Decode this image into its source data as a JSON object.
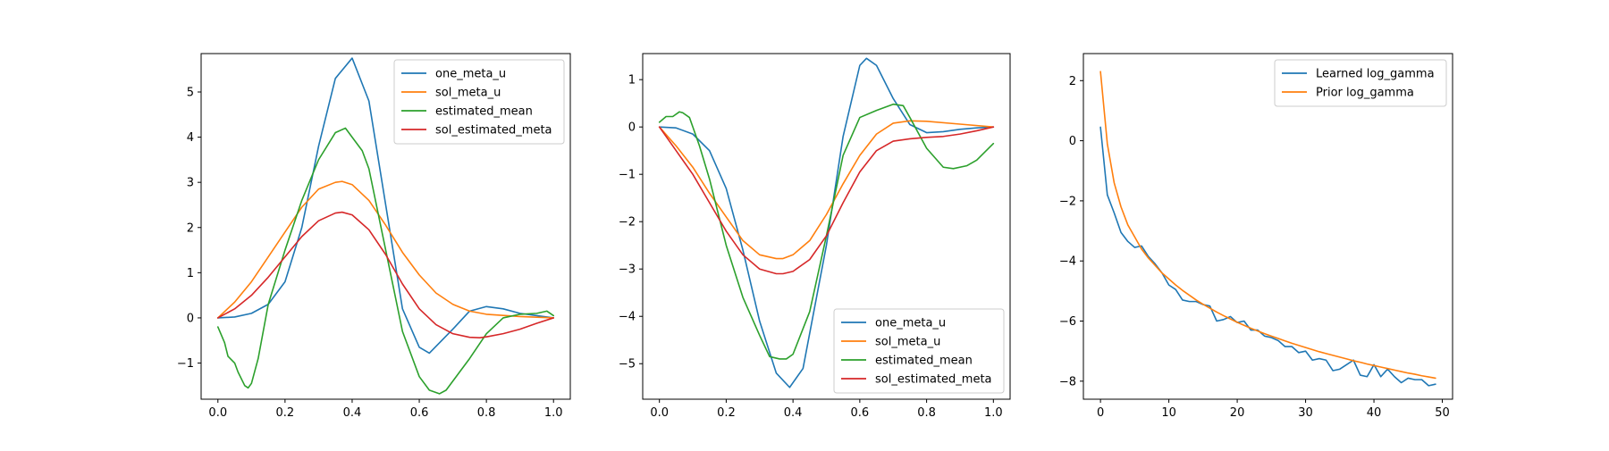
{
  "chart_data": [
    {
      "type": "line",
      "title": "",
      "xlabel": "",
      "ylabel": "",
      "xlim": [
        -0.05,
        1.05
      ],
      "ylim": [
        -1.8,
        5.85
      ],
      "xticks": [
        0.0,
        0.2,
        0.4,
        0.6,
        0.8,
        1.0
      ],
      "xtick_labels": [
        "0.0",
        "0.2",
        "0.4",
        "0.6",
        "0.8",
        "1.0"
      ],
      "yticks": [
        -1,
        0,
        1,
        2,
        3,
        4,
        5
      ],
      "ytick_labels": [
        "−1",
        "0",
        "1",
        "2",
        "3",
        "4",
        "5"
      ],
      "grid": false,
      "legend": "upper right",
      "series": [
        {
          "name": "one_meta_u",
          "color": "#1f77b4",
          "x": [
            0.0,
            0.05,
            0.1,
            0.15,
            0.2,
            0.25,
            0.3,
            0.35,
            0.4,
            0.45,
            0.5,
            0.55,
            0.6,
            0.63,
            0.7,
            0.75,
            0.8,
            0.85,
            0.9,
            0.95,
            1.0
          ],
          "y": [
            0.0,
            0.02,
            0.1,
            0.3,
            0.8,
            2.0,
            3.8,
            5.3,
            5.75,
            4.8,
            2.5,
            0.2,
            -0.65,
            -0.78,
            -0.25,
            0.15,
            0.25,
            0.2,
            0.1,
            0.05,
            0.0
          ]
        },
        {
          "name": "sol_meta_u",
          "color": "#ff7f0e",
          "x": [
            0.0,
            0.05,
            0.1,
            0.15,
            0.2,
            0.25,
            0.3,
            0.35,
            0.37,
            0.4,
            0.45,
            0.5,
            0.55,
            0.6,
            0.65,
            0.7,
            0.75,
            0.8,
            0.9,
            1.0
          ],
          "y": [
            0.0,
            0.35,
            0.8,
            1.35,
            1.9,
            2.45,
            2.85,
            3.0,
            3.02,
            2.95,
            2.6,
            2.05,
            1.45,
            0.95,
            0.55,
            0.3,
            0.15,
            0.08,
            0.03,
            0.0
          ]
        },
        {
          "name": "estimated_mean",
          "color": "#2ca02c",
          "x": [
            0.0,
            0.02,
            0.03,
            0.05,
            0.06,
            0.08,
            0.09,
            0.1,
            0.12,
            0.15,
            0.2,
            0.25,
            0.3,
            0.35,
            0.38,
            0.4,
            0.43,
            0.45,
            0.5,
            0.55,
            0.6,
            0.63,
            0.66,
            0.68,
            0.72,
            0.75,
            0.8,
            0.85,
            0.9,
            0.95,
            0.98,
            1.0
          ],
          "y": [
            -0.2,
            -0.55,
            -0.85,
            -1.0,
            -1.2,
            -1.5,
            -1.55,
            -1.45,
            -0.9,
            0.3,
            1.5,
            2.6,
            3.5,
            4.1,
            4.2,
            4.0,
            3.7,
            3.3,
            1.5,
            -0.3,
            -1.3,
            -1.6,
            -1.68,
            -1.6,
            -1.2,
            -0.9,
            -0.35,
            0.0,
            0.08,
            0.1,
            0.15,
            0.05
          ]
        },
        {
          "name": "sol_estimated_meta",
          "color": "#d62728",
          "x": [
            0.0,
            0.05,
            0.1,
            0.15,
            0.2,
            0.25,
            0.3,
            0.35,
            0.37,
            0.4,
            0.45,
            0.5,
            0.55,
            0.6,
            0.65,
            0.7,
            0.75,
            0.78,
            0.8,
            0.85,
            0.9,
            0.95,
            1.0
          ],
          "y": [
            0.0,
            0.2,
            0.5,
            0.9,
            1.35,
            1.8,
            2.15,
            2.32,
            2.34,
            2.28,
            1.95,
            1.4,
            0.75,
            0.2,
            -0.15,
            -0.35,
            -0.43,
            -0.44,
            -0.42,
            -0.35,
            -0.25,
            -0.12,
            0.0
          ]
        }
      ]
    },
    {
      "type": "line",
      "title": "",
      "xlabel": "",
      "ylabel": "",
      "xlim": [
        -0.05,
        1.05
      ],
      "ylim": [
        -5.75,
        1.55
      ],
      "xticks": [
        0.0,
        0.2,
        0.4,
        0.6,
        0.8,
        1.0
      ],
      "xtick_labels": [
        "0.0",
        "0.2",
        "0.4",
        "0.6",
        "0.8",
        "1.0"
      ],
      "yticks": [
        -5,
        -4,
        -3,
        -2,
        -1,
        0,
        1
      ],
      "ytick_labels": [
        "−5",
        "−4",
        "−3",
        "−2",
        "−1",
        "0",
        "1"
      ],
      "grid": false,
      "legend": "lower right",
      "series": [
        {
          "name": "one_meta_u",
          "color": "#1f77b4",
          "x": [
            0.0,
            0.05,
            0.1,
            0.15,
            0.2,
            0.25,
            0.3,
            0.35,
            0.39,
            0.43,
            0.5,
            0.55,
            0.6,
            0.62,
            0.65,
            0.7,
            0.75,
            0.8,
            0.85,
            0.9,
            0.95,
            1.0
          ],
          "y": [
            0.0,
            -0.02,
            -0.15,
            -0.5,
            -1.3,
            -2.6,
            -4.1,
            -5.2,
            -5.5,
            -5.1,
            -2.5,
            -0.2,
            1.3,
            1.45,
            1.3,
            0.6,
            0.05,
            -0.12,
            -0.1,
            -0.05,
            -0.02,
            0.0
          ]
        },
        {
          "name": "sol_meta_u",
          "color": "#ff7f0e",
          "x": [
            0.0,
            0.05,
            0.1,
            0.15,
            0.2,
            0.25,
            0.3,
            0.35,
            0.37,
            0.4,
            0.45,
            0.5,
            0.55,
            0.6,
            0.65,
            0.7,
            0.75,
            0.8,
            0.9,
            1.0
          ],
          "y": [
            0.0,
            -0.4,
            -0.85,
            -1.4,
            -1.9,
            -2.4,
            -2.7,
            -2.78,
            -2.78,
            -2.7,
            -2.4,
            -1.85,
            -1.2,
            -0.6,
            -0.15,
            0.08,
            0.13,
            0.12,
            0.06,
            0.0
          ]
        },
        {
          "name": "estimated_mean",
          "color": "#2ca02c",
          "x": [
            0.0,
            0.02,
            0.04,
            0.06,
            0.07,
            0.09,
            0.1,
            0.12,
            0.15,
            0.2,
            0.25,
            0.3,
            0.33,
            0.36,
            0.38,
            0.4,
            0.45,
            0.5,
            0.55,
            0.6,
            0.65,
            0.7,
            0.73,
            0.75,
            0.8,
            0.85,
            0.88,
            0.92,
            0.95,
            1.0
          ],
          "y": [
            0.1,
            0.22,
            0.22,
            0.32,
            0.3,
            0.2,
            0.0,
            -0.4,
            -1.1,
            -2.5,
            -3.6,
            -4.4,
            -4.85,
            -4.9,
            -4.9,
            -4.8,
            -3.9,
            -2.3,
            -0.6,
            0.2,
            0.35,
            0.48,
            0.45,
            0.2,
            -0.45,
            -0.85,
            -0.88,
            -0.82,
            -0.7,
            -0.35
          ]
        },
        {
          "name": "sol_estimated_meta",
          "color": "#d62728",
          "x": [
            0.0,
            0.05,
            0.1,
            0.15,
            0.2,
            0.25,
            0.3,
            0.35,
            0.37,
            0.4,
            0.45,
            0.5,
            0.55,
            0.6,
            0.65,
            0.7,
            0.75,
            0.8,
            0.85,
            0.9,
            0.95,
            1.0
          ],
          "y": [
            0.0,
            -0.5,
            -1.0,
            -1.6,
            -2.2,
            -2.7,
            -3.0,
            -3.1,
            -3.1,
            -3.05,
            -2.8,
            -2.3,
            -1.6,
            -0.95,
            -0.5,
            -0.3,
            -0.25,
            -0.22,
            -0.2,
            -0.15,
            -0.08,
            0.0
          ]
        }
      ]
    },
    {
      "type": "line",
      "title": "",
      "xlabel": "",
      "ylabel": "",
      "xlim": [
        -2.5,
        51.5
      ],
      "ylim": [
        -8.6,
        2.9
      ],
      "xticks": [
        0,
        10,
        20,
        30,
        40,
        50
      ],
      "xtick_labels": [
        "0",
        "10",
        "20",
        "30",
        "40",
        "50"
      ],
      "yticks": [
        -8,
        -6,
        -4,
        -2,
        0,
        2
      ],
      "ytick_labels": [
        "−8",
        "−6",
        "−4",
        "−2",
        "0",
        "2"
      ],
      "grid": false,
      "legend": "upper right",
      "series": [
        {
          "name": "Learned log_gamma",
          "color": "#1f77b4",
          "x": [
            0,
            1,
            2,
            3,
            4,
            5,
            6,
            7,
            8,
            9,
            10,
            11,
            12,
            13,
            14,
            15,
            16,
            17,
            18,
            19,
            20,
            21,
            22,
            23,
            24,
            25,
            26,
            27,
            28,
            29,
            30,
            31,
            32,
            33,
            34,
            35,
            36,
            37,
            38,
            39,
            40,
            41,
            42,
            43,
            44,
            45,
            46,
            47,
            48,
            49
          ],
          "y": [
            0.45,
            -1.8,
            -2.4,
            -3.05,
            -3.35,
            -3.55,
            -3.5,
            -3.85,
            -4.1,
            -4.4,
            -4.8,
            -4.95,
            -5.3,
            -5.35,
            -5.35,
            -5.45,
            -5.5,
            -6.0,
            -5.95,
            -5.85,
            -6.05,
            -6.0,
            -6.3,
            -6.3,
            -6.5,
            -6.55,
            -6.65,
            -6.85,
            -6.85,
            -7.05,
            -7.0,
            -7.3,
            -7.25,
            -7.3,
            -7.65,
            -7.6,
            -7.45,
            -7.3,
            -7.8,
            -7.85,
            -7.45,
            -7.85,
            -7.6,
            -7.85,
            -8.05,
            -7.9,
            -7.95,
            -7.95,
            -8.15,
            -8.1
          ]
        },
        {
          "name": "Prior log_gamma",
          "color": "#ff7f0e",
          "x": [
            0,
            1,
            2,
            3,
            4,
            5,
            6,
            7,
            8,
            9,
            10,
            11,
            12,
            13,
            14,
            15,
            16,
            17,
            18,
            19,
            20,
            21,
            22,
            23,
            24,
            25,
            26,
            27,
            28,
            29,
            30,
            31,
            32,
            33,
            34,
            35,
            36,
            37,
            38,
            39,
            40,
            41,
            42,
            43,
            44,
            45,
            46,
            47,
            48,
            49
          ],
          "y": [
            2.3,
            -0.1,
            -1.4,
            -2.2,
            -2.8,
            -3.2,
            -3.6,
            -3.9,
            -4.15,
            -4.4,
            -4.6,
            -4.8,
            -4.98,
            -5.14,
            -5.3,
            -5.44,
            -5.57,
            -5.7,
            -5.82,
            -5.93,
            -6.04,
            -6.14,
            -6.24,
            -6.33,
            -6.42,
            -6.5,
            -6.58,
            -6.66,
            -6.74,
            -6.81,
            -6.88,
            -6.95,
            -7.02,
            -7.08,
            -7.14,
            -7.2,
            -7.26,
            -7.32,
            -7.37,
            -7.43,
            -7.48,
            -7.53,
            -7.58,
            -7.63,
            -7.68,
            -7.73,
            -7.77,
            -7.82,
            -7.86,
            -7.9
          ]
        }
      ]
    }
  ]
}
